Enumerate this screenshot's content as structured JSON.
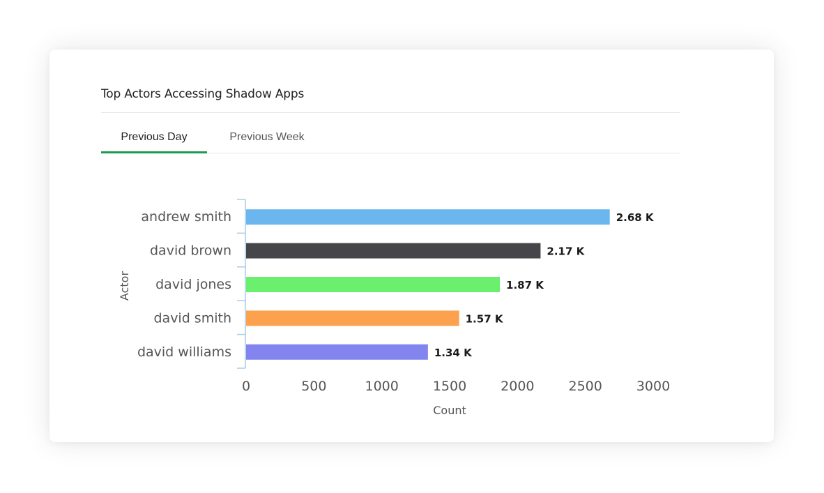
{
  "card": {
    "title": "Top Actors Accessing Shadow Apps"
  },
  "tabs": [
    {
      "label": "Previous Day",
      "active": true
    },
    {
      "label": "Previous Week",
      "active": false
    }
  ],
  "colors": {
    "accent": "#1e9a52",
    "axis": "#a9cbe6"
  },
  "chart_data": {
    "type": "bar",
    "orientation": "horizontal",
    "xlabel": "Count",
    "ylabel": "Actor",
    "xlim": [
      0,
      3000
    ],
    "x_ticks": [
      0,
      500,
      1000,
      1500,
      2000,
      2500,
      3000
    ],
    "grid": false,
    "categories": [
      "andrew smith",
      "david brown",
      "david jones",
      "david smith",
      "david williams"
    ],
    "values": [
      2680,
      2170,
      1870,
      1570,
      1340
    ],
    "data_labels": [
      "2.68 K",
      "2.17 K",
      "1.87 K",
      "1.57 K",
      "1.34 K"
    ],
    "bar_colors": [
      "#6bb6ee",
      "#45454a",
      "#6aef6e",
      "#fca24e",
      "#8385ee"
    ]
  }
}
